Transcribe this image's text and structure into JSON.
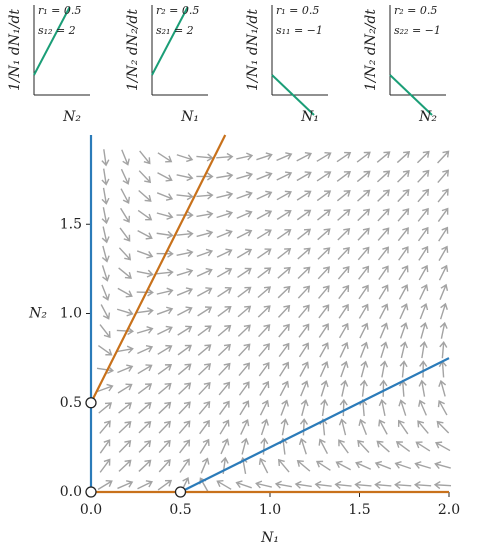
{
  "chart_data": [
    {
      "type": "quiver",
      "xlabel": "N₁",
      "ylabel": "N₂",
      "xlim": [
        0,
        2
      ],
      "ylim": [
        0,
        2
      ],
      "xticks": [
        {
          "value": 0,
          "label": "0.0"
        },
        {
          "value": 0.5,
          "label": "0.5"
        },
        {
          "value": 1,
          "label": "1.0"
        },
        {
          "value": 1.5,
          "label": "1.5"
        },
        {
          "value": 2,
          "label": "2.0"
        }
      ],
      "yticks": [
        {
          "value": 0,
          "label": "0.0"
        },
        {
          "value": 0.5,
          "label": "0.5"
        },
        {
          "value": 1,
          "label": "1.0"
        },
        {
          "value": 1.5,
          "label": "1.5"
        }
      ],
      "n1_color": "#2b7bb9",
      "n2_color": "#c8711b",
      "arrow_color": "#a3a3a3"
    },
    {
      "type": "line",
      "ylabel": "1/N₁ dN₁/dt",
      "xlabel": "N₂",
      "ylabel_color": "#2b7bb9",
      "xlabel_color": "#c8711b",
      "color": "#1b9e77",
      "params": [
        {
          "value": 0.5,
          "label": "r₁ = 0.5"
        },
        {
          "value": 2,
          "label": "s₁₂ = 2"
        }
      ]
    },
    {
      "type": "line",
      "ylabel": "1/N₂ dN₂/dt",
      "xlabel": "N₁",
      "ylabel_color": "#c8711b",
      "xlabel_color": "#2b7bb9",
      "color": "#1b9e77",
      "params": [
        {
          "value": 0.5,
          "label": "r₂ = 0.5"
        },
        {
          "value": 2,
          "label": "s₂₁ = 2"
        }
      ]
    },
    {
      "type": "line",
      "ylabel": "1/N₁ dN₁/dt",
      "xlabel": "N₁",
      "ylabel_color": "#2b7bb9",
      "xlabel_color": "#2b7bb9",
      "color": "#1b9e77",
      "params": [
        {
          "value": 0.5,
          "label": "r₁ = 0.5"
        },
        {
          "value": -1,
          "label": "s₁₁ = −1"
        }
      ]
    },
    {
      "type": "line",
      "ylabel": "1/N₂ dN₂/dt",
      "xlabel": "N₂",
      "ylabel_color": "#c8711b",
      "xlabel_color": "#c8711b",
      "color": "#1b9e77",
      "params": [
        {
          "value": 0.5,
          "label": "r₂ = 0.5"
        },
        {
          "value": -1,
          "label": "s₂₂ = −1"
        }
      ]
    }
  ]
}
